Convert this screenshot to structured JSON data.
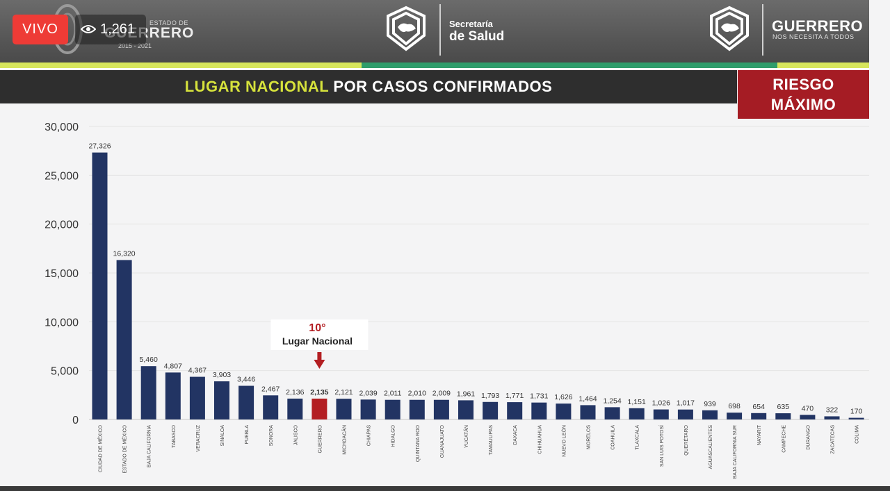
{
  "stream": {
    "live_label": "VIVO",
    "viewers": "1,261",
    "live_color": "#ee3b36"
  },
  "header": {
    "state_small": "ESTADO DE",
    "state_name": "GUERRERO",
    "state_years": "2015 - 2021",
    "secretaria_line1": "Secretaría",
    "secretaria_line2": "de Salud",
    "brand_name": "GUERRERO",
    "brand_tagline": "NOS NECESITA A TODOS"
  },
  "title": {
    "highlight": "LUGAR NACIONAL",
    "rest": "POR CASOS CONFIRMADOS"
  },
  "risk": {
    "line1": "RIESGO",
    "line2": "MÁXIMO",
    "color": "#a51c24"
  },
  "chart_data": {
    "type": "bar",
    "title": "LUGAR NACIONAL POR CASOS CONFIRMADOS",
    "xlabel": "",
    "ylabel": "",
    "ylim": [
      0,
      30000
    ],
    "yticks": [
      0,
      5000,
      10000,
      15000,
      20000,
      25000,
      30000
    ],
    "ytick_labels": [
      "0",
      "5,000",
      "10,000",
      "15,000",
      "20,000",
      "25,000",
      "30,000"
    ],
    "grid": true,
    "bar_color": "#223463",
    "highlight_color": "#b31e22",
    "highlight_category": "GUERRERO",
    "categories": [
      "CIUDAD DE MÉXICO",
      "ESTADO DE MÉXICO",
      "BAJA CALIFORNIA",
      "TABASCO",
      "VERACRUZ",
      "SINALOA",
      "PUEBLA",
      "SONORA",
      "JALISCO",
      "GUERRERO",
      "MICHOACÁN",
      "CHIAPAS",
      "HIDALGO",
      "QUINTANA ROO",
      "GUANAJUATO",
      "YUCATÁN",
      "TAMAULIPAS",
      "OAXACA",
      "CHIHUAHUA",
      "NUEVO LEÓN",
      "MORELOS",
      "COAHUILA",
      "TLAXCALA",
      "SAN LUIS POTOSÍ",
      "QUERÉTARO",
      "AGUASCALIENTES",
      "BAJA CALIFORNIA SUR",
      "NAYARIT",
      "CAMPECHE",
      "DURANGO",
      "ZACATECAS",
      "COLIMA"
    ],
    "values": [
      27326,
      16320,
      5460,
      4807,
      4367,
      3903,
      3446,
      2467,
      2136,
      2135,
      2121,
      2039,
      2011,
      2010,
      2009,
      1961,
      1793,
      1771,
      1731,
      1626,
      1464,
      1254,
      1151,
      1026,
      1017,
      939,
      698,
      654,
      635,
      470,
      322,
      170
    ],
    "value_labels": [
      "27,326",
      "16,320",
      "5,460",
      "4,807",
      "4,367",
      "3,903",
      "3,446",
      "2,467",
      "2,136",
      "2,135",
      "2,121",
      "2,039",
      "2,011",
      "2,010",
      "2,009",
      "1,961",
      "1,793",
      "1,771",
      "1,731",
      "1,626",
      "1,464",
      "1,254",
      "1,151",
      "1,026",
      "1,017",
      "939",
      "698",
      "654",
      "635",
      "470",
      "322",
      "170"
    ],
    "annotation": {
      "rank": "10°",
      "text": "Lugar Nacional",
      "category": "GUERRERO"
    }
  }
}
